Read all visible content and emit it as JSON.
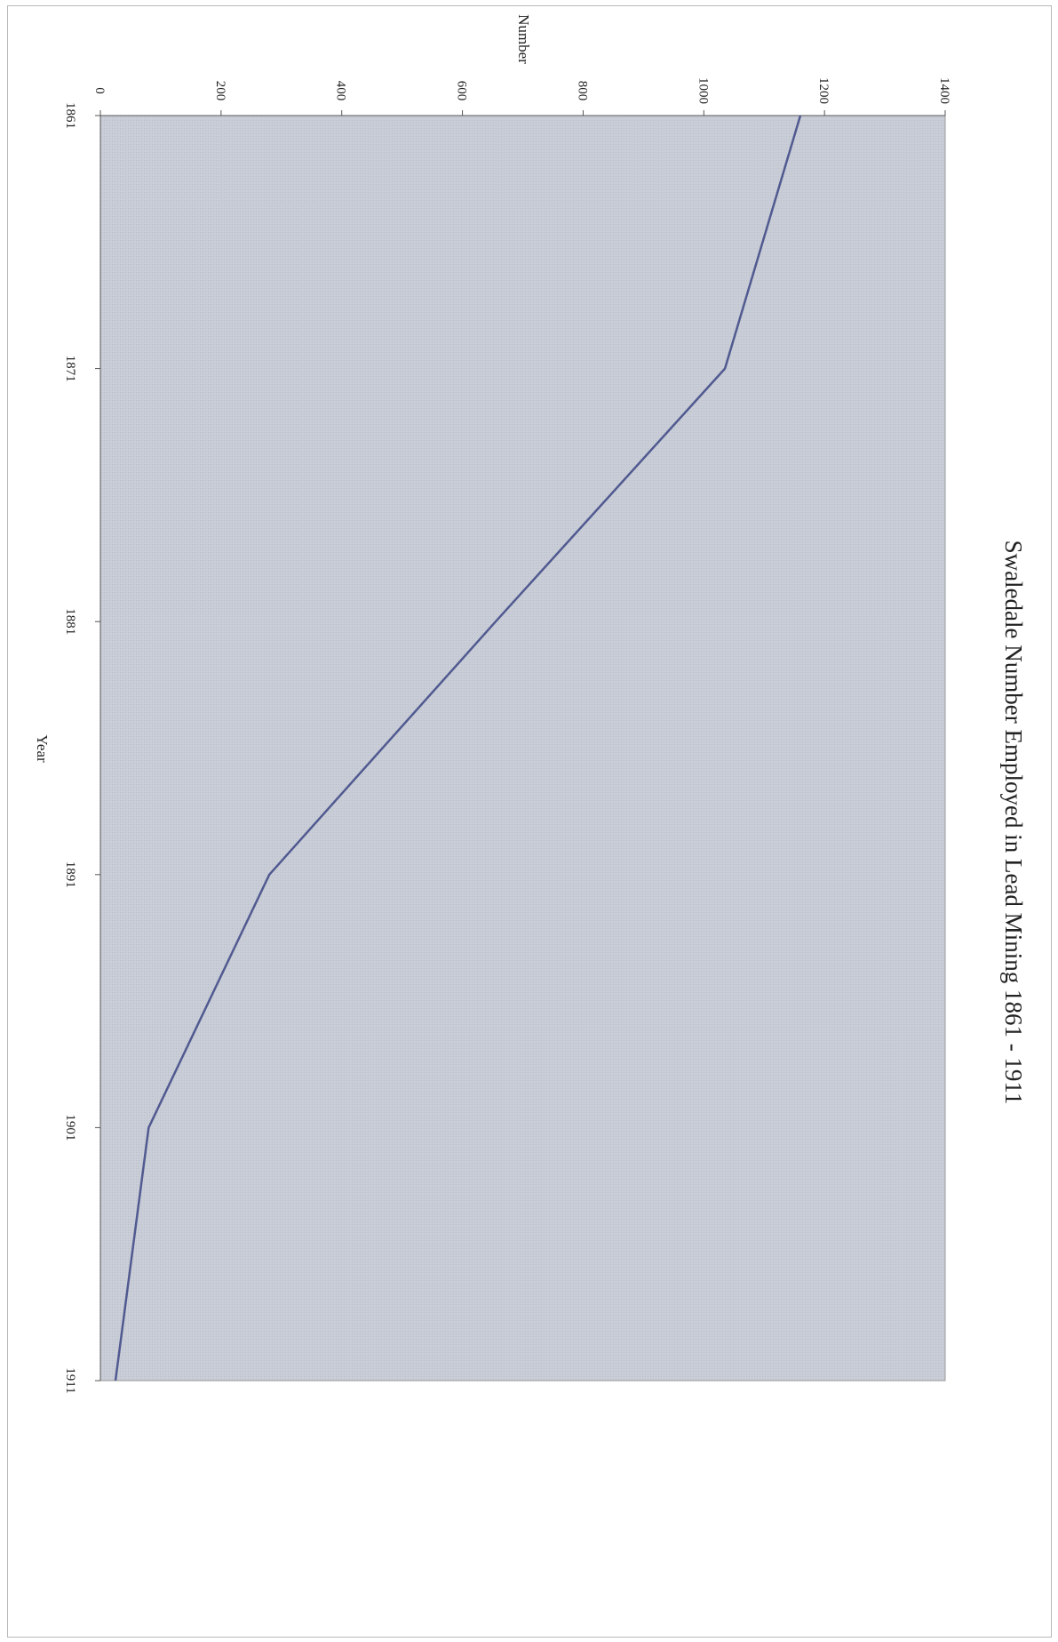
{
  "chart_data": {
    "type": "line",
    "title": "Swaledale Number Employed in Lead Mining 1861 - 1911",
    "xlabel": "Year",
    "ylabel": "Number",
    "x": [
      1861,
      1871,
      1881,
      1891,
      1901,
      1911
    ],
    "x_tick_labels": [
      "1861",
      "1871",
      "1881",
      "1891",
      "1901",
      "1911"
    ],
    "y_tick_labels": [
      "0",
      "200",
      "400",
      "600",
      "800",
      "1000",
      "1200",
      "1400"
    ],
    "xlim": [
      1861,
      1911
    ],
    "ylim": [
      0,
      1400
    ],
    "y_ticks": [
      0,
      200,
      400,
      600,
      800,
      1000,
      1200,
      1400
    ],
    "series": [
      {
        "values": [
          1160,
          1035,
          655,
          280,
          80,
          25
        ]
      }
    ],
    "grid": false,
    "legend": "none",
    "orientation": "rotated 90° clockwise on page",
    "colors": {
      "plot_background": "#c9cdd7",
      "line": "#505a90",
      "axis": "#555555"
    }
  }
}
